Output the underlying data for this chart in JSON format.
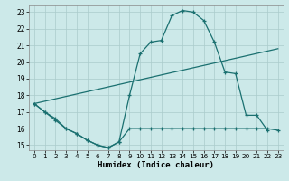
{
  "xlabel": "Humidex (Indice chaleur)",
  "bg_color": "#cce9e9",
  "grid_color": "#aacccc",
  "line_color": "#1a7070",
  "xlim": [
    -0.5,
    23.5
  ],
  "ylim": [
    14.7,
    23.4
  ],
  "yticks": [
    15,
    16,
    17,
    18,
    19,
    20,
    21,
    22,
    23
  ],
  "xticks": [
    0,
    1,
    2,
    3,
    4,
    5,
    6,
    7,
    8,
    9,
    10,
    11,
    12,
    13,
    14,
    15,
    16,
    17,
    18,
    19,
    20,
    21,
    22,
    23
  ],
  "line1_x": [
    0,
    1,
    2,
    3,
    4,
    5,
    6,
    7,
    8,
    9,
    10,
    11,
    12,
    13,
    14,
    15,
    16,
    17,
    18,
    19,
    20,
    21,
    22
  ],
  "line1_y": [
    17.5,
    17.0,
    16.5,
    16.0,
    15.7,
    15.3,
    15.0,
    14.85,
    15.2,
    18.0,
    20.5,
    21.2,
    21.3,
    22.8,
    23.1,
    23.0,
    22.5,
    21.2,
    19.4,
    19.3,
    16.8,
    16.8,
    15.9
  ],
  "line2_x": [
    0,
    1,
    2,
    3,
    4,
    5,
    6,
    7,
    8,
    9,
    10,
    11,
    12,
    13,
    14,
    15,
    16,
    17,
    18,
    19,
    20,
    21,
    22,
    23
  ],
  "line2_y": [
    17.5,
    17.0,
    16.6,
    16.0,
    15.7,
    15.3,
    15.0,
    14.85,
    15.2,
    16.0,
    16.0,
    16.0,
    16.0,
    16.0,
    16.0,
    16.0,
    16.0,
    16.0,
    16.0,
    16.0,
    16.0,
    16.0,
    16.0,
    15.9
  ],
  "line3_x": [
    0,
    23
  ],
  "line3_y": [
    17.5,
    20.8
  ]
}
